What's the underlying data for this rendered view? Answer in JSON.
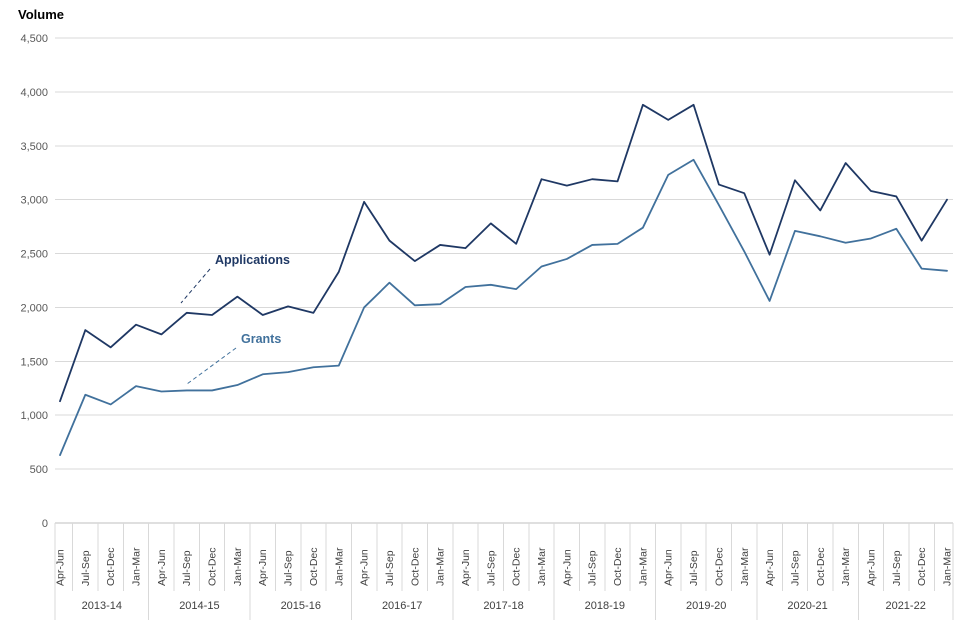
{
  "page": {
    "title": "Volume"
  },
  "chart_data": {
    "type": "line",
    "title": "Volume",
    "xlabel": "",
    "ylabel": "Volume",
    "ylim": [
      0,
      4500
    ],
    "ytick_step": 500,
    "grid": true,
    "legend_position": "inline-annotations",
    "quarter_labels": [
      "Apr-Jun",
      "Jul-Sep",
      "Oct-Dec",
      "Jan-Mar"
    ],
    "year_labels": [
      "2013-14",
      "2014-15",
      "2015-16",
      "2016-17",
      "2017-18",
      "2018-19",
      "2019-20",
      "2020-21",
      "2021-22"
    ],
    "series": [
      {
        "name": "Applications",
        "color": "#1F3864",
        "values": [
          1130,
          1790,
          1630,
          1840,
          1750,
          1950,
          1930,
          2100,
          1930,
          2010,
          1950,
          2330,
          2980,
          2620,
          2430,
          2580,
          2550,
          2780,
          2590,
          3190,
          3130,
          3190,
          3170,
          3880,
          3740,
          3880,
          3140,
          3060,
          2490,
          3180,
          2900,
          3340,
          3080,
          3030,
          2620,
          3000
        ]
      },
      {
        "name": "Grants",
        "color": "#41719C",
        "values": [
          630,
          1190,
          1100,
          1270,
          1220,
          1230,
          1230,
          1280,
          1380,
          1400,
          1445,
          1460,
          2000,
          2230,
          2020,
          2030,
          2190,
          2210,
          2170,
          2380,
          2450,
          2580,
          2590,
          2740,
          3230,
          3370,
          2950,
          2520,
          2060,
          2710,
          2660,
          2600,
          2640,
          2730,
          2360,
          2340
        ]
      }
    ]
  },
  "style_colors": {
    "background": "#ffffff",
    "gridline": "#d9d9d9",
    "axis_line": "#bfbfbf",
    "separator": "#d9d9d9",
    "y_tick_label": "#595959",
    "category_label": "#404040"
  }
}
